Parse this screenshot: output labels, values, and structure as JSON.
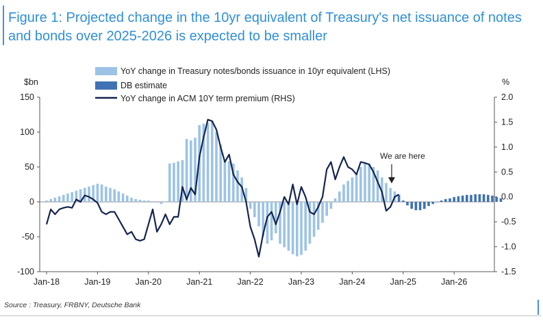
{
  "figure": {
    "title": "Figure 1: Projected change in the 10yr equivalent of Treasury's net issuance of notes and bonds over 2025-2026 is expected to be smaller",
    "source": "Source : Treasury, FRBNY, Deutsche Bank"
  },
  "chart_data": {
    "type": "bar",
    "title": "",
    "left_axis_unit": "$bn",
    "right_axis_unit": "%",
    "ylim_left": [
      -100,
      150
    ],
    "ylim_right": [
      -1.5,
      2.0
    ],
    "left_ticks": [
      "150",
      "100",
      "50",
      "0",
      "-50",
      "-100"
    ],
    "right_ticks": [
      "2.0",
      "1.5",
      "1.0",
      "0.5",
      "0.0",
      "-0.5",
      "-1.0",
      "-1.5"
    ],
    "x_ticks": [
      "Jan-18",
      "Jan-19",
      "Jan-20",
      "Jan-21",
      "Jan-22",
      "Jan-23",
      "Jan-24",
      "Jan-25",
      "Jan-26"
    ],
    "colors": {
      "actual": "#9cc3e6",
      "estimate": "#3f72b4",
      "line": "#14234f",
      "zero": "#666666"
    },
    "legend": [
      {
        "name": "YoY change in Treasury notes/bonds issuance in 10yr equivalent (LHS)",
        "kind": "bar",
        "color": "#9cc3e6"
      },
      {
        "name": "DB estimate",
        "kind": "bar",
        "color": "#3f72b4"
      },
      {
        "name": "YoY change in ACM 10Y term premium (RHS)",
        "kind": "line",
        "color": "#14234f"
      }
    ],
    "annotation": {
      "text": "We are here",
      "date": "2024-11"
    },
    "series": [
      {
        "name": "YoY change in Treasury notes/bonds issuance in 10yr equivalent (LHS)",
        "axis": "left",
        "start": "2018-01",
        "values": [
          2,
          4,
          6,
          8,
          10,
          12,
          14,
          16,
          18,
          20,
          22,
          24,
          26,
          25,
          22,
          20,
          18,
          15,
          12,
          9,
          6,
          4,
          3,
          2,
          2,
          1,
          -1,
          -3,
          0,
          55,
          56,
          58,
          60,
          90,
          88,
          92,
          110,
          112,
          113,
          116,
          100,
          82,
          60,
          58,
          55,
          45,
          35,
          20,
          -10,
          -22,
          -35,
          -50,
          -60,
          -55,
          -45,
          -60,
          -65,
          -70,
          -75,
          -78,
          -76,
          -70,
          -60,
          -50,
          -40,
          -30,
          -20,
          -10,
          5,
          15,
          25,
          30,
          35,
          40,
          50,
          55,
          55,
          50,
          45,
          35,
          27,
          20,
          15
        ]
      },
      {
        "name": "DB estimate",
        "axis": "left",
        "start": "2024-12",
        "values": [
          10,
          2,
          -5,
          -10,
          -12,
          -12,
          -10,
          -6,
          -3,
          0,
          2,
          4,
          5,
          7,
          8,
          9,
          10,
          10,
          11,
          11,
          11,
          10,
          9,
          7,
          5
        ]
      },
      {
        "name": "YoY change in ACM 10Y term premium (RHS)",
        "axis": "right",
        "start": "2018-01",
        "values": [
          -0.55,
          -0.25,
          -0.35,
          -0.25,
          -0.22,
          -0.2,
          -0.22,
          -0.05,
          -0.1,
          0.03,
          0.0,
          -0.05,
          -0.12,
          -0.3,
          -0.35,
          -0.3,
          -0.3,
          -0.45,
          -0.6,
          -0.75,
          -0.7,
          -0.85,
          -0.88,
          -0.85,
          -0.55,
          -0.25,
          -0.7,
          -0.55,
          -0.35,
          -0.55,
          -0.4,
          -0.4,
          0.2,
          -0.05,
          0.18,
          0.05,
          0.8,
          1.2,
          1.55,
          1.52,
          1.35,
          1.0,
          0.7,
          0.85,
          0.45,
          0.3,
          0.2,
          -0.1,
          -0.6,
          -0.85,
          -1.2,
          -0.75,
          -0.4,
          -0.3,
          -0.55,
          -0.3,
          0.0,
          -0.15,
          0.25,
          -0.15,
          0.2,
          0.0,
          -0.3,
          -0.35,
          -0.2,
          0.0,
          0.55,
          0.7,
          0.35,
          0.6,
          0.8,
          0.6,
          0.55,
          0.45,
          0.7,
          0.68,
          0.65,
          0.5,
          0.3,
          0.1,
          -0.28,
          -0.2,
          0.0,
          0.05
        ]
      }
    ]
  }
}
